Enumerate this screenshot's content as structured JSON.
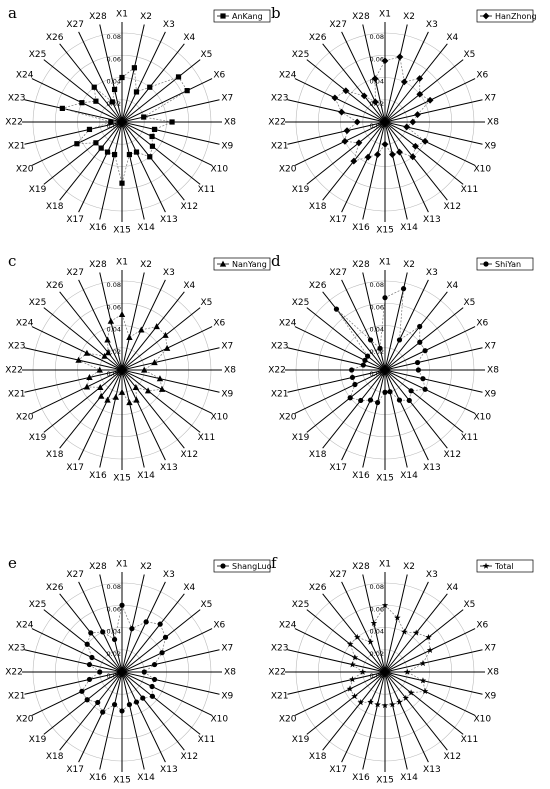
{
  "chart_data": [
    {
      "type": "radar",
      "label": "a",
      "categories": [
        "X1",
        "X2",
        "X3",
        "X4",
        "X5",
        "X6",
        "X7",
        "X8",
        "X9",
        "X10",
        "X11",
        "X12",
        "X13",
        "X14",
        "X15",
        "X16",
        "X17",
        "X18",
        "X19",
        "X20",
        "X21",
        "X22",
        "X23",
        "X24",
        "X25",
        "X26",
        "X27",
        "X28"
      ],
      "series": [
        {
          "name": "AnKang",
          "color": "#000000",
          "values": [
            0.04,
            0.05,
            0.03,
            0.04,
            0.065,
            0.065,
            0.02,
            0.045,
            0.03,
            0.03,
            0.035,
            0.04,
            0.03,
            0.03,
            0.055,
            0.03,
            0.03,
            0.03,
            0.03,
            0.045,
            0.03,
            0.01,
            0.055,
            0.04,
            0.03,
            0.04,
            0.02,
            0.03
          ]
        }
      ],
      "marker": "square",
      "rlim": [
        0,
        0.08
      ],
      "rticks": [
        {
          "value": 0,
          "label": "0.00"
        },
        0.02,
        0.04,
        0.06,
        0.08
      ],
      "grid": true
    },
    {
      "type": "radar",
      "label": "b",
      "categories": [
        "X1",
        "X2",
        "X3",
        "X4",
        "X5",
        "X6",
        "X7",
        "X8",
        "X9",
        "X10",
        "X11",
        "X12",
        "X13",
        "X14",
        "X15",
        "X16",
        "X17",
        "X18",
        "X19",
        "X20",
        "X21",
        "X22",
        "X23",
        "X24",
        "X25",
        "X26",
        "X27",
        "X28"
      ],
      "series": [
        {
          "name": "HanZhong",
          "color": "#000000",
          "values": [
            0.055,
            0.06,
            0.04,
            0.05,
            0.04,
            0.045,
            0.03,
            0.025,
            0.02,
            0.04,
            0.035,
            0.04,
            0.03,
            0.03,
            0.02,
            0.03,
            0.035,
            0.045,
            0.03,
            0.04,
            0.035,
            0.025,
            0.04,
            0.05,
            0.045,
            0.03,
            0.02,
            0.04
          ]
        }
      ],
      "marker": "diamond",
      "rlim": [
        0,
        0.08
      ],
      "rticks": [
        {
          "value": 0,
          "label": "0.00"
        },
        0.02,
        0.04,
        0.06,
        0.08
      ],
      "grid": true
    },
    {
      "type": "radar",
      "label": "c",
      "categories": [
        "X1",
        "X2",
        "X3",
        "X4",
        "X5",
        "X6",
        "X7",
        "X8",
        "X9",
        "X10",
        "X11",
        "X12",
        "X13",
        "X14",
        "X15",
        "X16",
        "X17",
        "X18",
        "X19",
        "X20",
        "X21",
        "X22",
        "X23",
        "X24",
        "X25",
        "X26",
        "X27",
        "X28"
      ],
      "series": [
        {
          "name": "NanYang",
          "color": "#000000",
          "values": [
            0.05,
            0.03,
            0.04,
            0.05,
            0.05,
            0.045,
            0.03,
            0.02,
            0.035,
            0.04,
            0.03,
            0.02,
            0.03,
            0.03,
            0.02,
            0.025,
            0.03,
            0.03,
            0.025,
            0.035,
            0.03,
            0.02,
            0.04,
            0.035,
            0.02,
            0.02,
            0.03,
            0.045
          ]
        }
      ],
      "marker": "triangle",
      "rlim": [
        0,
        0.08
      ],
      "rticks": [
        {
          "value": 0,
          "label": "0.00"
        },
        0.02,
        0.04,
        0.06,
        0.08
      ],
      "grid": true
    },
    {
      "type": "radar",
      "label": "d",
      "categories": [
        "X1",
        "X2",
        "X3",
        "X4",
        "X5",
        "X6",
        "X7",
        "X8",
        "X9",
        "X10",
        "X11",
        "X12",
        "X13",
        "X14",
        "X15",
        "X16",
        "X17",
        "X18",
        "X19",
        "X20",
        "X21",
        "X22",
        "X23",
        "X24",
        "X25",
        "X26",
        "X27",
        "X28"
      ],
      "series": [
        {
          "name": "ShiYan",
          "color": "#000000",
          "values": [
            0.065,
            0.075,
            0.03,
            0.05,
            0.04,
            0.04,
            0.03,
            0.03,
            0.035,
            0.04,
            0.03,
            0.035,
            0.03,
            0.02,
            0.02,
            0.03,
            0.03,
            0.035,
            0.04,
            0.03,
            0.03,
            0.03,
            0.02,
            0.02,
            0.02,
            0.07,
            0.03,
            0.02
          ]
        }
      ],
      "marker": "circle",
      "rlim": [
        0,
        0.08
      ],
      "rticks": [
        {
          "value": 0,
          "label": "0.00"
        },
        0.02,
        0.04,
        0.06,
        0.08
      ],
      "grid": true
    },
    {
      "type": "radar",
      "label": "e",
      "categories": [
        "X1",
        "X2",
        "X3",
        "X4",
        "X5",
        "X6",
        "X7",
        "X8",
        "X9",
        "X10",
        "X11",
        "X12",
        "X13",
        "X14",
        "X15",
        "X16",
        "X17",
        "X18",
        "X19",
        "X20",
        "X21",
        "X22",
        "X23",
        "X24",
        "X25",
        "X26",
        "X27",
        "X28"
      ],
      "series": [
        {
          "name": "ShangLuo",
          "color": "#000000",
          "values": [
            0.06,
            0.04,
            0.05,
            0.055,
            0.05,
            0.04,
            0.03,
            0.02,
            0.03,
            0.03,
            0.035,
            0.03,
            0.03,
            0.03,
            0.035,
            0.03,
            0.04,
            0.035,
            0.04,
            0.04,
            0.03,
            0.02,
            0.03,
            0.03,
            0.04,
            0.045,
            0.04,
            0.03
          ]
        }
      ],
      "marker": "circle",
      "rlim": [
        0,
        0.08
      ],
      "rticks": [
        {
          "value": 0,
          "label": "0.00"
        },
        0.02,
        0.04,
        0.06,
        0.08
      ],
      "grid": true
    },
    {
      "type": "radar",
      "label": "f",
      "categories": [
        "X1",
        "X2",
        "X3",
        "X4",
        "X5",
        "X6",
        "X7",
        "X8",
        "X9",
        "X10",
        "X11",
        "X12",
        "X13",
        "X14",
        "X15",
        "X16",
        "X17",
        "X18",
        "X19",
        "X20",
        "X21",
        "X22",
        "X23",
        "X24",
        "X25",
        "X26",
        "X27",
        "X28"
      ],
      "series": [
        {
          "name": "Total",
          "color": "#000000",
          "values": [
            0.06,
            0.05,
            0.04,
            0.045,
            0.05,
            0.045,
            0.035,
            0.02,
            0.035,
            0.04,
            0.03,
            0.03,
            0.03,
            0.03,
            0.03,
            0.03,
            0.03,
            0.035,
            0.035,
            0.035,
            0.03,
            0.02,
            0.03,
            0.03,
            0.04,
            0.04,
            0.03,
            0.045
          ]
        }
      ],
      "marker": "star",
      "rlim": [
        0,
        0.08
      ],
      "rticks": [
        {
          "value": 0,
          "label": "0.00"
        },
        0.02,
        0.04,
        0.06,
        0.08
      ],
      "grid": true
    }
  ]
}
